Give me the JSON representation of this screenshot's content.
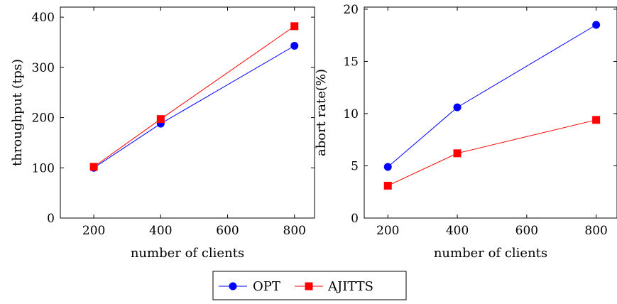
{
  "chart_data": [
    {
      "type": "line",
      "title": "",
      "xlabel": "number of clients",
      "ylabel": "throughput (tps)",
      "x": [
        200,
        400,
        800
      ],
      "xlim": [
        100,
        860
      ],
      "ylim": [
        0,
        420
      ],
      "xticks": [
        "200",
        "400",
        "600",
        "800"
      ],
      "yticks": [
        "0",
        "100",
        "200",
        "300",
        "400"
      ],
      "grid": false,
      "series": [
        {
          "name": "OPT",
          "values": [
            100,
            188,
            343
          ],
          "color": "#0000ff",
          "marker": "circle"
        },
        {
          "name": "AJITTS",
          "values": [
            102,
            197,
            382
          ],
          "color": "#ff0000",
          "marker": "square"
        }
      ]
    },
    {
      "type": "line",
      "title": "",
      "xlabel": "number of clients",
      "ylabel": "abort rate(%)",
      "x": [
        200,
        400,
        800
      ],
      "xlim": [
        132,
        860
      ],
      "ylim": [
        0,
        20.2
      ],
      "xticks": [
        "200",
        "400",
        "600",
        "800"
      ],
      "yticks": [
        "0",
        "5",
        "10",
        "15",
        "20"
      ],
      "grid": false,
      "series": [
        {
          "name": "OPT",
          "values": [
            4.9,
            10.6,
            18.5
          ],
          "color": "#0000ff",
          "marker": "circle"
        },
        {
          "name": "AJITTS",
          "values": [
            3.1,
            6.2,
            9.4
          ],
          "color": "#ff0000",
          "marker": "square"
        }
      ]
    }
  ],
  "legend": {
    "placement": "bottom-center",
    "entries": [
      {
        "label": "OPT",
        "color": "#0000ff",
        "marker": "circle"
      },
      {
        "label": "AJITTS",
        "color": "#ff0000",
        "marker": "square"
      }
    ]
  }
}
